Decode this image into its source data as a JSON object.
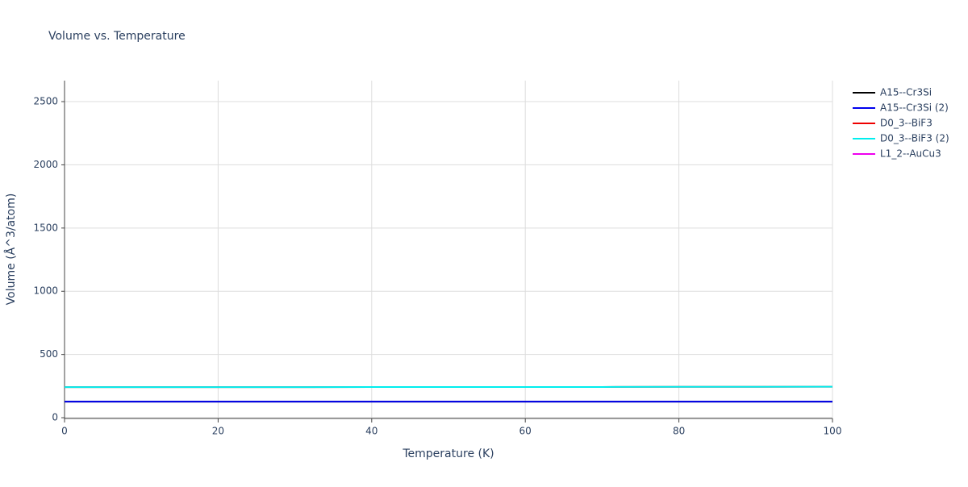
{
  "chart_data": {
    "type": "line",
    "title": "Volume vs. Temperature",
    "xlabel": "Temperature (K)",
    "ylabel": "Volume (Å^3/atom)",
    "x": [
      0,
      10,
      20,
      30,
      40,
      50,
      60,
      70,
      80,
      90,
      100
    ],
    "series": [
      {
        "name": "A15--Cr3Si",
        "color": "#000000",
        "values": [
          127,
          127,
          127,
          127,
          127,
          127,
          127,
          127,
          127,
          127,
          127
        ]
      },
      {
        "name": "A15--Cr3Si (2)",
        "color": "#0000ee",
        "values": [
          127,
          127,
          127,
          127,
          127,
          127,
          127,
          127,
          127,
          127,
          127
        ]
      },
      {
        "name": "D0_3--BiF3",
        "color": "#ee0000",
        "values": [
          242,
          242,
          242,
          242,
          243,
          243,
          243,
          243,
          244,
          244,
          245
        ]
      },
      {
        "name": "D0_3--BiF3 (2)",
        "color": "#00eeee",
        "values": [
          242,
          242,
          242,
          242,
          243,
          243,
          243,
          243,
          244,
          244,
          245
        ]
      },
      {
        "name": "L1_2--AuCu3",
        "color": "#ee00ee",
        "values": [
          null,
          null,
          null,
          null,
          null,
          null,
          null,
          null,
          null,
          null,
          null
        ]
      }
    ],
    "xlim": [
      0,
      100
    ],
    "xticks": [
      0,
      20,
      40,
      60,
      80,
      100
    ],
    "ylim": [
      -6,
      2666
    ],
    "yticks": [
      0,
      500,
      1000,
      1500,
      2000,
      2500
    ],
    "grid": true,
    "legend": "right"
  }
}
